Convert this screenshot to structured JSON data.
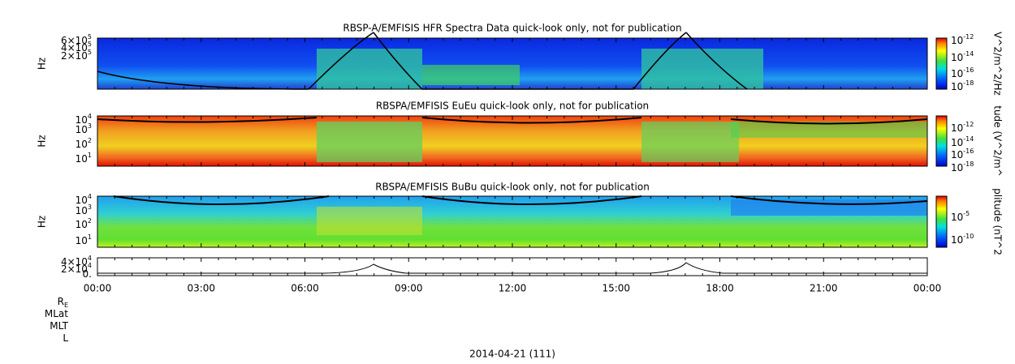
{
  "panels": [
    {
      "title": "RBSP-A/EMFISIS  HFR Spectra Data quick-look only, not for publication",
      "y_label": "Hz",
      "y_ticks": [
        {
          "base": "6×10",
          "exp": "5"
        },
        {
          "base": "4×10",
          "exp": "5"
        },
        {
          "base": "2×10",
          "exp": "5"
        }
      ],
      "colorbar_label": "V^2/m^2/Hz",
      "colorbar_ticks": [
        {
          "base": "10",
          "exp": "-12"
        },
        {
          "base": "10",
          "exp": "-14"
        },
        {
          "base": "10",
          "exp": "-16"
        },
        {
          "base": "10",
          "exp": "-18"
        }
      ]
    },
    {
      "title": "RBSPA/EMFISIS  EuEu quick-look only, not for publication",
      "y_label": "Hz",
      "y_ticks": [
        {
          "base": "10",
          "exp": "4"
        },
        {
          "base": "10",
          "exp": "3"
        },
        {
          "base": "10",
          "exp": "2"
        },
        {
          "base": "10",
          "exp": "1"
        }
      ],
      "colorbar_label": "tude (V^2/m^",
      "colorbar_ticks": [
        {
          "base": "10",
          "exp": "-12"
        },
        {
          "base": "10",
          "exp": "-14"
        },
        {
          "base": "10",
          "exp": "-16"
        },
        {
          "base": "10",
          "exp": "-18"
        }
      ]
    },
    {
      "title": "RBSPA/EMFISIS  BuBu quick-look only, not for publication",
      "y_label": "Hz",
      "y_ticks": [
        {
          "base": "10",
          "exp": "4"
        },
        {
          "base": "10",
          "exp": "3"
        },
        {
          "base": "10",
          "exp": "2"
        },
        {
          "base": "10",
          "exp": "1"
        }
      ],
      "colorbar_label": "plitude (nT^2",
      "colorbar_ticks": [
        {
          "base": "10",
          "exp": "-5"
        },
        {
          "base": "10",
          "exp": "-10"
        }
      ]
    },
    {
      "y_ticks": [
        {
          "base": "4×10",
          "exp": "4"
        },
        {
          "base": "2×10",
          "exp": "4"
        },
        {
          "base": "0."
        }
      ]
    }
  ],
  "x_ticks": [
    "00:00",
    "03:00",
    "06:00",
    "09:00",
    "12:00",
    "15:00",
    "18:00",
    "21:00",
    "00:00"
  ],
  "ephemeris_labels": [
    {
      "base": "R",
      "sub": "E"
    },
    {
      "base": "MLat"
    },
    {
      "base": "MLT"
    },
    {
      "base": "L"
    }
  ],
  "date": "2014-04-21 (111)"
}
